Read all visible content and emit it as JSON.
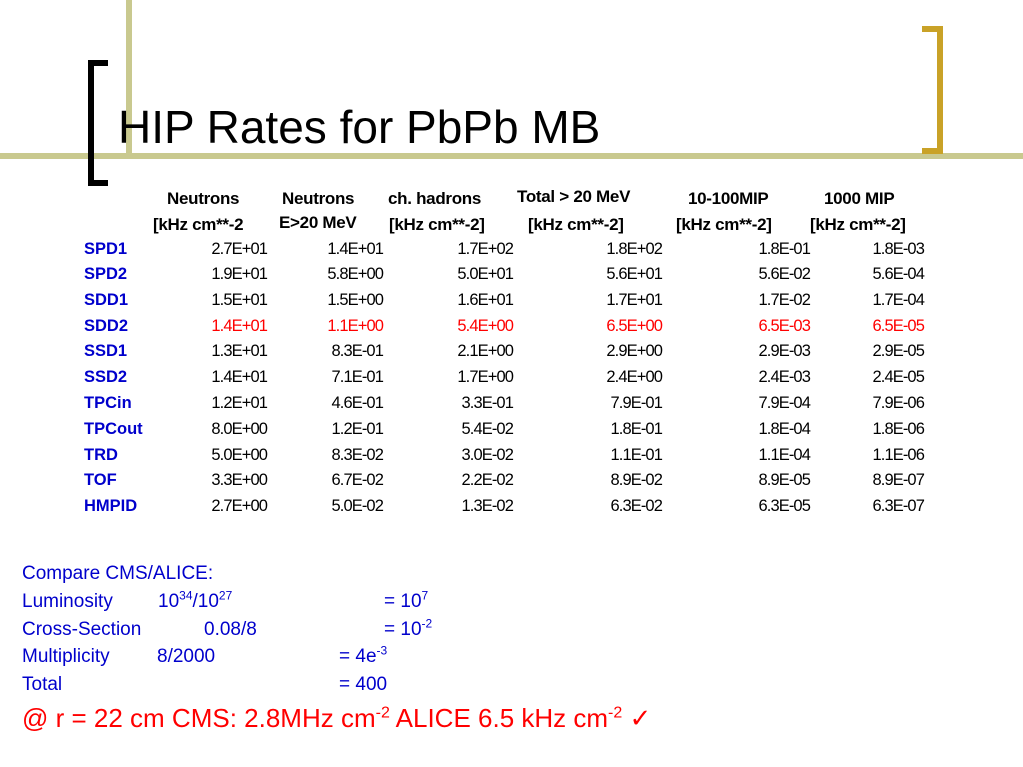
{
  "slide": {
    "title": "HIP Rates for PbPb MB"
  },
  "table": {
    "headers": [
      {
        "line1": "Neutrons",
        "line2": "[kHz cm**-2"
      },
      {
        "line1": "Neutrons",
        "line2": "E>20 MeV"
      },
      {
        "line1": "ch.  hadrons",
        "line2": "[kHz cm**-2]"
      },
      {
        "line1": "Total > 20 MeV",
        "line2": "[kHz cm**-2]"
      },
      {
        "line1": "10-100MIP",
        "line2": "[kHz cm**-2]"
      },
      {
        "line1": "1000 MIP",
        "line2": "[kHz cm**-2]"
      }
    ],
    "rows": [
      {
        "label": "SPD1",
        "values": [
          "2.7E+01",
          "1.4E+01",
          "1.7E+02",
          "1.8E+02",
          "1.8E-01",
          "1.8E-03"
        ]
      },
      {
        "label": "SPD2",
        "values": [
          "1.9E+01",
          "5.8E+00",
          "5.0E+01",
          "5.6E+01",
          "5.6E-02",
          "5.6E-04"
        ]
      },
      {
        "label": "SDD1",
        "values": [
          "1.5E+01",
          "1.5E+00",
          "1.6E+01",
          "1.7E+01",
          "1.7E-02",
          "1.7E-04"
        ]
      },
      {
        "label": "SDD2",
        "values": [
          "1.4E+01",
          "1.1E+00",
          "5.4E+00",
          "6.5E+00",
          "6.5E-03",
          "6.5E-05"
        ],
        "highlight": true
      },
      {
        "label": "SSD1",
        "values": [
          "1.3E+01",
          "8.3E-01",
          "2.1E+00",
          "2.9E+00",
          "2.9E-03",
          "2.9E-05"
        ]
      },
      {
        "label": "SSD2",
        "values": [
          "1.4E+01",
          "7.1E-01",
          "1.7E+00",
          "2.4E+00",
          "2.4E-03",
          "2.4E-05"
        ]
      },
      {
        "label": "TPCin",
        "values": [
          "1.2E+01",
          "4.6E-01",
          "3.3E-01",
          "7.9E-01",
          "7.9E-04",
          "7.9E-06"
        ]
      },
      {
        "label": "TPCout",
        "values": [
          "8.0E+00",
          "1.2E-01",
          "5.4E-02",
          "1.8E-01",
          "1.8E-04",
          "1.8E-06"
        ]
      },
      {
        "label": "TRD",
        "values": [
          "5.0E+00",
          "8.3E-02",
          "3.0E-02",
          "1.1E-01",
          "1.1E-04",
          "1.1E-06"
        ]
      },
      {
        "label": "TOF",
        "values": [
          "3.3E+00",
          "6.7E-02",
          "2.2E-02",
          "8.9E-02",
          "8.9E-05",
          "8.9E-07"
        ]
      },
      {
        "label": "HMPID",
        "values": [
          "2.7E+00",
          "5.0E-02",
          "1.3E-02",
          "6.3E-02",
          "6.3E-05",
          "6.3E-07"
        ]
      }
    ]
  },
  "notes": {
    "heading": "Compare  CMS/ALICE:",
    "luminosity": {
      "label": "Luminosity",
      "ratio_base1": "10",
      "ratio_exp1": "34",
      "ratio_sep": "/10",
      "ratio_exp2": "27",
      "result_prefix": "= 10",
      "result_exp": "7"
    },
    "cross_section": {
      "label": "Cross-Section",
      "ratio": "0.08/8",
      "result_prefix": "= 10",
      "result_exp": "-2"
    },
    "multiplicity": {
      "label": "Multiplicity",
      "ratio": "8/2000",
      "result_prefix": "= 4e",
      "result_exp": "-3"
    },
    "total": {
      "label": "Total",
      "result": "= 400"
    },
    "final": {
      "prefix": "@ r = 22 cm CMS: 2.8MHz cm",
      "exp1": "-2",
      "middle": " ALICE 6.5 kHz cm",
      "exp2": "-2",
      "check": " ✓"
    }
  },
  "colors": {
    "accent_blue": "#0000cc",
    "highlight_red": "#ff0000",
    "olive": "#c9c98f",
    "gold": "#c9a227"
  }
}
